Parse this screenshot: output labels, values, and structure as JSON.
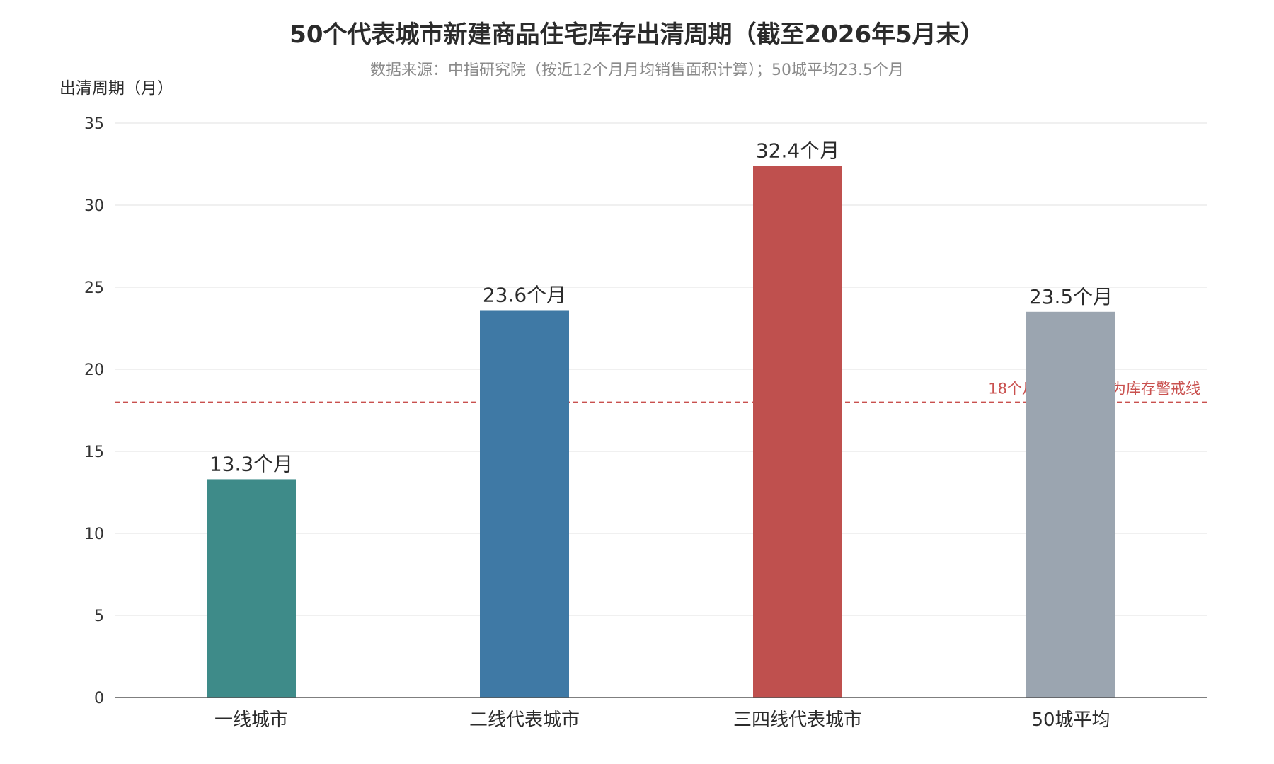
{
  "chart_data": {
    "type": "bar",
    "title": "50个代表城市新建商品住宅库存出清周期（截至2026年5月末）",
    "subtitle": "数据来源：中指研究院（按近12个月月均销售面积计算）；50城平均23.5个月",
    "ylabel": "出清周期（月）",
    "xlabel": "",
    "categories": [
      "一线城市",
      "二线代表城市",
      "三四线代表城市",
      "50城平均"
    ],
    "values": [
      13.3,
      23.6,
      32.4,
      23.5
    ],
    "value_labels": [
      "13.3个月",
      "23.6个月",
      "32.4个月",
      "23.5个月"
    ],
    "bar_colors": [
      "#3e8b89",
      "#3f79a5",
      "#bf504e",
      "#9ba5b0"
    ],
    "ylim": [
      0,
      35
    ],
    "yticks": [
      0,
      5,
      10,
      15,
      20,
      25,
      30,
      35
    ],
    "grid": true,
    "reference_line": {
      "value": 18,
      "label": "18个月：通常被视为库存警戒线",
      "color": "#c9504e",
      "style": "dashed"
    }
  }
}
